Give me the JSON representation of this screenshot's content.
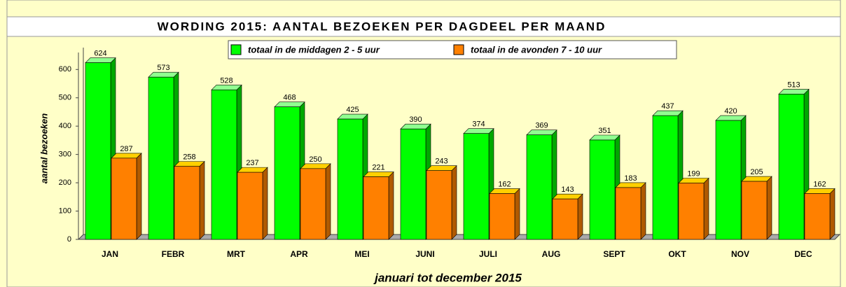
{
  "chart_data": {
    "type": "bar3d",
    "title": "WORDING 2015: AANTAL BEZOEKEN PER DAGDEEL PER MAAND",
    "categories": [
      "JAN",
      "FEBR",
      "MRT",
      "APR",
      "MEI",
      "JUNI",
      "JULI",
      "AUG",
      "SEPT",
      "OKT",
      "NOV",
      "DEC"
    ],
    "series": [
      {
        "name": "totaal in de middagen 2 - 5 uur",
        "color": "#00ff00",
        "values": [
          624,
          573,
          528,
          468,
          425,
          390,
          374,
          369,
          351,
          437,
          420,
          513
        ]
      },
      {
        "name": "totaal in de avonden 7 - 10 uur",
        "color": "#ff8000",
        "values": [
          287,
          258,
          237,
          250,
          221,
          243,
          162,
          143,
          183,
          199,
          205,
          162
        ]
      }
    ],
    "ylim": [
      0,
      660
    ],
    "yticks": [
      0,
      100,
      200,
      300,
      400,
      500,
      600
    ],
    "ylabel": "aantal bezoeken",
    "xlabel": "januari tot december 2015"
  }
}
